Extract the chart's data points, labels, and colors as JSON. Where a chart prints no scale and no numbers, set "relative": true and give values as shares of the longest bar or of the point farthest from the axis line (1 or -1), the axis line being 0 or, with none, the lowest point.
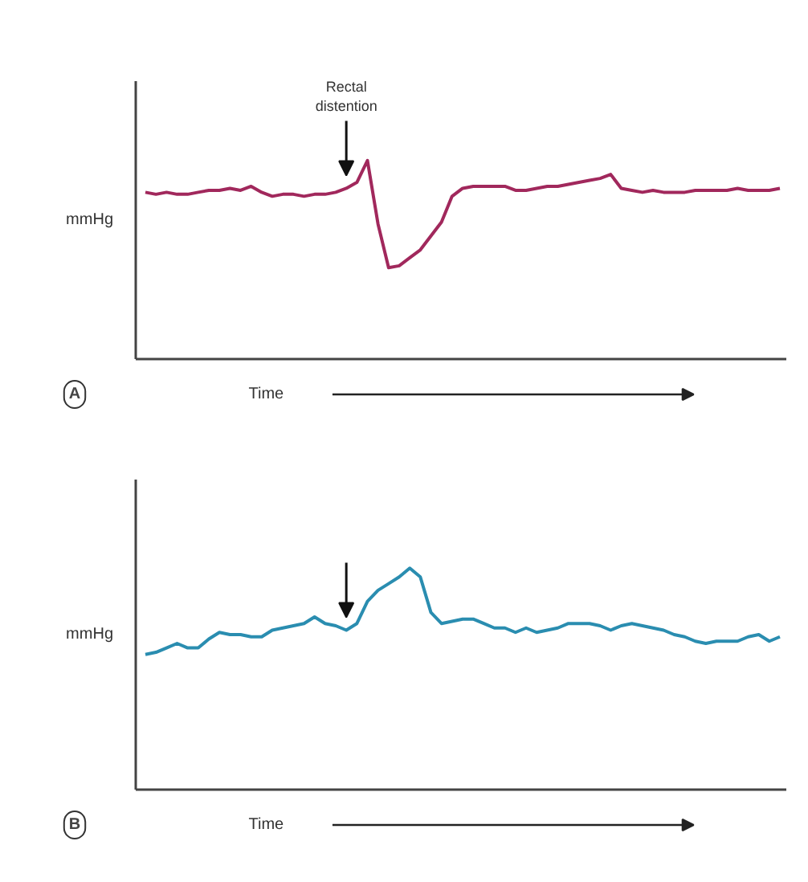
{
  "chart_data": [
    {
      "type": "line",
      "title": "A",
      "xlabel": "Time",
      "ylabel": "mmHg",
      "relative": true,
      "annotations": [
        "Rectal distention"
      ],
      "categories": [
        null,
        null,
        null,
        null,
        null,
        null,
        null,
        null,
        null,
        null,
        null,
        null,
        null,
        null,
        null,
        null,
        null,
        null,
        null,
        null,
        null,
        null,
        null,
        null,
        null,
        null,
        null,
        null,
        null,
        null,
        null,
        null,
        null,
        null,
        null,
        null,
        null,
        null,
        null,
        null,
        null,
        null,
        null,
        null,
        null,
        null,
        null,
        null,
        null,
        null,
        null,
        null,
        null,
        null,
        null,
        null,
        null,
        null,
        null,
        null,
        null
      ],
      "series": [
        {
          "color": "#a1285c",
          "values": [
            0.84,
            0.83,
            0.84,
            0.83,
            0.83,
            0.84,
            0.85,
            0.85,
            0.86,
            0.85,
            0.87,
            0.84,
            0.82,
            0.83,
            0.83,
            0.82,
            0.83,
            0.83,
            0.84,
            0.86,
            0.89,
            1.0,
            0.68,
            0.46,
            0.47,
            0.51,
            0.55,
            0.62,
            0.69,
            0.82,
            0.86,
            0.87,
            0.87,
            0.87,
            0.87,
            0.85,
            0.85,
            0.86,
            0.87,
            0.87,
            0.88,
            0.89,
            0.9,
            0.91,
            0.93,
            0.86,
            0.85,
            0.84,
            0.85,
            0.84,
            0.84,
            0.84,
            0.85,
            0.85,
            0.85,
            0.85,
            0.86,
            0.85,
            0.85,
            0.85,
            0.86
          ]
        }
      ]
    },
    {
      "type": "line",
      "title": "B",
      "xlabel": "Time",
      "ylabel": "mmHg",
      "relative": true,
      "categories": [
        null,
        null,
        null,
        null,
        null,
        null,
        null,
        null,
        null,
        null,
        null,
        null,
        null,
        null,
        null,
        null,
        null,
        null,
        null,
        null,
        null,
        null,
        null,
        null,
        null,
        null,
        null,
        null,
        null,
        null,
        null,
        null,
        null,
        null,
        null,
        null,
        null,
        null,
        null,
        null,
        null,
        null,
        null,
        null,
        null,
        null,
        null,
        null,
        null,
        null,
        null,
        null,
        null,
        null,
        null,
        null,
        null,
        null,
        null,
        null,
        null
      ],
      "series": [
        {
          "color": "#2a8db0",
          "values": [
            0.61,
            0.62,
            0.64,
            0.66,
            0.64,
            0.64,
            0.68,
            0.71,
            0.7,
            0.7,
            0.69,
            0.69,
            0.72,
            0.73,
            0.74,
            0.75,
            0.78,
            0.75,
            0.74,
            0.72,
            0.75,
            0.85,
            0.9,
            0.93,
            0.96,
            1.0,
            0.96,
            0.8,
            0.75,
            0.76,
            0.77,
            0.77,
            0.75,
            0.73,
            0.73,
            0.71,
            0.73,
            0.71,
            0.72,
            0.73,
            0.75,
            0.75,
            0.75,
            0.74,
            0.72,
            0.74,
            0.75,
            0.74,
            0.73,
            0.72,
            0.7,
            0.69,
            0.67,
            0.66,
            0.67,
            0.67,
            0.67,
            0.69,
            0.7,
            0.67,
            0.69
          ]
        }
      ]
    }
  ]
}
